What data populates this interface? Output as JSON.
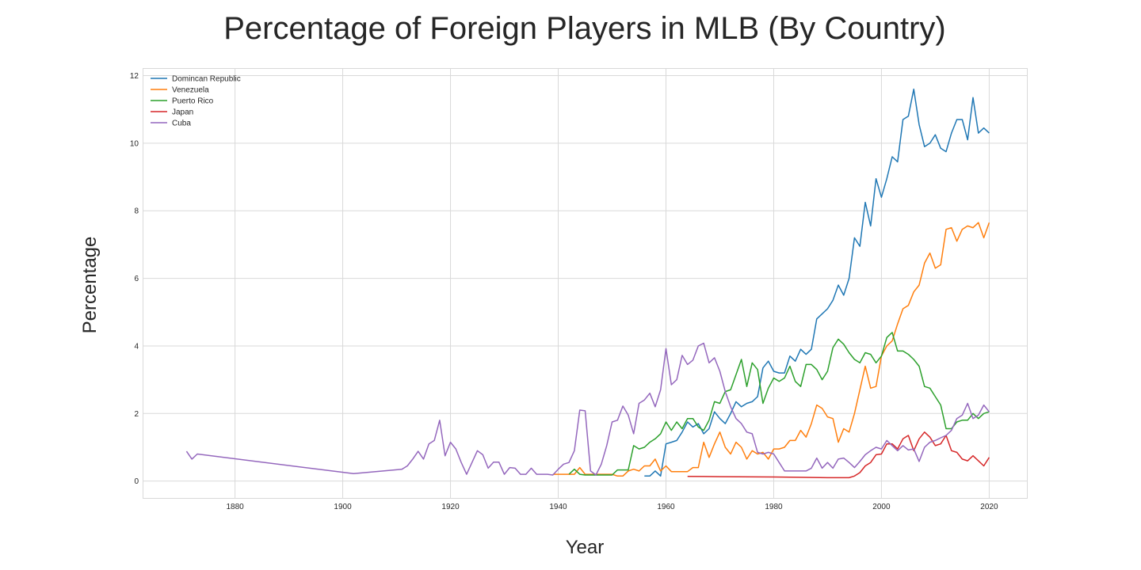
{
  "chart_data": {
    "type": "line",
    "title": "Percentage of Foreign Players in MLB (By Country)",
    "xlabel": "Year",
    "ylabel": "Percentage",
    "xlim": [
      1863,
      2027
    ],
    "ylim": [
      -0.5,
      12.2
    ],
    "x_ticks": [
      1880,
      1900,
      1920,
      1940,
      1960,
      1980,
      2000,
      2020
    ],
    "y_ticks": [
      0,
      2,
      4,
      6,
      8,
      10,
      12
    ],
    "grid": true,
    "legend_position": "top-left",
    "series": [
      {
        "name": "Domincan Republic",
        "color": "#1f77b4",
        "x": [
          1956,
          1957,
          1958,
          1959,
          1960,
          1961,
          1962,
          1963,
          1964,
          1965,
          1966,
          1967,
          1968,
          1969,
          1970,
          1971,
          1972,
          1973,
          1974,
          1975,
          1976,
          1977,
          1978,
          1979,
          1980,
          1981,
          1982,
          1983,
          1984,
          1985,
          1986,
          1987,
          1988,
          1989,
          1990,
          1991,
          1992,
          1993,
          1994,
          1995,
          1996,
          1997,
          1998,
          1999,
          2000,
          2001,
          2002,
          2003,
          2004,
          2005,
          2006,
          2007,
          2008,
          2009,
          2010,
          2011,
          2012,
          2013,
          2014,
          2015,
          2016,
          2017,
          2018,
          2019,
          2020
        ],
        "values": [
          0.15,
          0.15,
          0.3,
          0.15,
          1.1,
          1.15,
          1.2,
          1.45,
          1.75,
          1.6,
          1.7,
          1.4,
          1.55,
          2.05,
          1.85,
          1.7,
          2.0,
          2.35,
          2.2,
          2.3,
          2.35,
          2.5,
          3.35,
          3.55,
          3.25,
          3.2,
          3.2,
          3.7,
          3.55,
          3.9,
          3.75,
          3.9,
          4.8,
          4.95,
          5.1,
          5.35,
          5.8,
          5.5,
          6.0,
          7.2,
          6.95,
          8.25,
          7.55,
          8.95,
          8.4,
          8.95,
          9.6,
          9.45,
          10.7,
          10.8,
          11.6,
          10.55,
          9.9,
          10.0,
          10.25,
          9.85,
          9.75,
          10.3,
          10.7,
          10.7,
          10.1,
          11.35,
          10.3,
          10.45,
          10.3
        ]
      },
      {
        "name": "Venezuela",
        "color": "#ff7f0e",
        "x": [
          1939,
          1940,
          1941,
          1942,
          1943,
          1944,
          1945,
          1946,
          1947,
          1948,
          1949,
          1950,
          1951,
          1952,
          1953,
          1954,
          1955,
          1956,
          1957,
          1958,
          1959,
          1960,
          1961,
          1962,
          1963,
          1964,
          1965,
          1966,
          1967,
          1968,
          1969,
          1970,
          1971,
          1972,
          1973,
          1974,
          1975,
          1976,
          1977,
          1978,
          1979,
          1980,
          1981,
          1982,
          1983,
          1984,
          1985,
          1986,
          1987,
          1988,
          1989,
          1990,
          1991,
          1992,
          1993,
          1994,
          1995,
          1996,
          1997,
          1998,
          1999,
          2000,
          2001,
          2002,
          2003,
          2004,
          2005,
          2006,
          2007,
          2008,
          2009,
          2010,
          2011,
          2012,
          2013,
          2014,
          2015,
          2016,
          2017,
          2018,
          2019,
          2020
        ],
        "values": [
          0.2,
          0.2,
          0.2,
          0.2,
          0.2,
          0.4,
          0.2,
          0.2,
          0.2,
          0.2,
          0.2,
          0.2,
          0.15,
          0.15,
          0.3,
          0.35,
          0.3,
          0.45,
          0.45,
          0.65,
          0.3,
          0.45,
          0.28,
          0.28,
          0.28,
          0.28,
          0.4,
          0.4,
          1.15,
          0.7,
          1.1,
          1.45,
          1.0,
          0.8,
          1.15,
          1.0,
          0.65,
          0.9,
          0.8,
          0.85,
          0.65,
          0.95,
          0.95,
          1.0,
          1.2,
          1.2,
          1.5,
          1.3,
          1.7,
          2.25,
          2.15,
          1.9,
          1.85,
          1.15,
          1.55,
          1.45,
          2.0,
          2.7,
          3.4,
          2.75,
          2.8,
          3.7,
          4.0,
          4.15,
          4.65,
          5.1,
          5.2,
          5.6,
          5.8,
          6.45,
          6.75,
          6.3,
          6.4,
          7.45,
          7.5,
          7.1,
          7.45,
          7.55,
          7.5,
          7.65,
          7.2,
          7.65
        ]
      },
      {
        "name": "Puerto Rico",
        "color": "#2ca02c",
        "x": [
          1942,
          1943,
          1944,
          1945,
          1946,
          1947,
          1948,
          1949,
          1950,
          1951,
          1952,
          1953,
          1954,
          1955,
          1956,
          1957,
          1958,
          1959,
          1960,
          1961,
          1962,
          1963,
          1964,
          1965,
          1966,
          1967,
          1968,
          1969,
          1970,
          1971,
          1972,
          1973,
          1974,
          1975,
          1976,
          1977,
          1978,
          1979,
          1980,
          1981,
          1982,
          1983,
          1984,
          1985,
          1986,
          1987,
          1988,
          1989,
          1990,
          1991,
          1992,
          1993,
          1994,
          1995,
          1996,
          1997,
          1998,
          1999,
          2000,
          2001,
          2002,
          2003,
          2004,
          2005,
          2006,
          2007,
          2008,
          2009,
          2010,
          2011,
          2012,
          2013,
          2014,
          2015,
          2016,
          2017,
          2018,
          2019,
          2020
        ],
        "values": [
          0.2,
          0.35,
          0.2,
          0.18,
          0.18,
          0.18,
          0.18,
          0.18,
          0.18,
          0.33,
          0.33,
          0.33,
          1.05,
          0.95,
          1.0,
          1.15,
          1.25,
          1.4,
          1.75,
          1.5,
          1.75,
          1.55,
          1.85,
          1.85,
          1.6,
          1.5,
          1.8,
          2.35,
          2.3,
          2.65,
          2.7,
          3.15,
          3.6,
          2.8,
          3.5,
          3.3,
          2.3,
          2.75,
          3.05,
          2.95,
          3.05,
          3.4,
          2.95,
          2.8,
          3.45,
          3.45,
          3.3,
          3.0,
          3.25,
          3.95,
          4.2,
          4.05,
          3.8,
          3.6,
          3.5,
          3.8,
          3.75,
          3.5,
          3.7,
          4.25,
          4.4,
          3.85,
          3.85,
          3.75,
          3.6,
          3.4,
          2.8,
          2.75,
          2.5,
          2.25,
          1.55,
          1.55,
          1.75,
          1.8,
          1.8,
          2.0,
          1.85,
          2.0,
          2.05
        ]
      },
      {
        "name": "Japan",
        "color": "#d62728",
        "x": [
          1964,
          1970,
          1980,
          1990,
          1994,
          1995,
          1996,
          1997,
          1998,
          1999,
          2000,
          2001,
          2002,
          2003,
          2004,
          2005,
          2006,
          2007,
          2008,
          2009,
          2010,
          2011,
          2012,
          2013,
          2014,
          2015,
          2016,
          2017,
          2018,
          2019,
          2020
        ],
        "values": [
          0.14,
          0.13,
          0.12,
          0.1,
          0.1,
          0.15,
          0.25,
          0.45,
          0.55,
          0.78,
          0.8,
          1.1,
          1.1,
          0.95,
          1.25,
          1.35,
          0.9,
          1.25,
          1.45,
          1.3,
          1.05,
          1.1,
          1.35,
          0.9,
          0.85,
          0.65,
          0.6,
          0.75,
          0.6,
          0.45,
          0.7
        ]
      },
      {
        "name": "Cuba",
        "color": "#9467bd",
        "x": [
          1871,
          1872,
          1873,
          1902,
          1911,
          1912,
          1913,
          1914,
          1915,
          1916,
          1917,
          1918,
          1919,
          1920,
          1921,
          1922,
          1923,
          1924,
          1925,
          1926,
          1927,
          1928,
          1929,
          1930,
          1931,
          1932,
          1933,
          1934,
          1935,
          1936,
          1937,
          1938,
          1939,
          1940,
          1941,
          1942,
          1943,
          1944,
          1945,
          1946,
          1947,
          1948,
          1949,
          1950,
          1951,
          1952,
          1953,
          1954,
          1955,
          1956,
          1957,
          1958,
          1959,
          1960,
          1961,
          1962,
          1963,
          1964,
          1965,
          1966,
          1967,
          1968,
          1969,
          1970,
          1971,
          1972,
          1973,
          1974,
          1975,
          1976,
          1977,
          1978,
          1979,
          1980,
          1981,
          1982,
          1983,
          1984,
          1985,
          1986,
          1987,
          1988,
          1989,
          1990,
          1991,
          1992,
          1993,
          1994,
          1995,
          1996,
          1997,
          1998,
          1999,
          2000,
          2001,
          2002,
          2003,
          2004,
          2005,
          2006,
          2007,
          2008,
          2009,
          2010,
          2011,
          2012,
          2013,
          2014,
          2015,
          2016,
          2017,
          2018,
          2019,
          2020
        ],
        "values": [
          0.88,
          0.65,
          0.8,
          0.22,
          0.35,
          0.45,
          0.65,
          0.88,
          0.65,
          1.1,
          1.2,
          1.8,
          0.75,
          1.15,
          0.95,
          0.55,
          0.2,
          0.55,
          0.9,
          0.78,
          0.38,
          0.56,
          0.56,
          0.2,
          0.4,
          0.38,
          0.2,
          0.2,
          0.38,
          0.2,
          0.2,
          0.2,
          0.18,
          0.35,
          0.5,
          0.55,
          0.9,
          2.1,
          2.08,
          0.3,
          0.18,
          0.5,
          1.05,
          1.75,
          1.8,
          2.22,
          1.95,
          1.4,
          2.3,
          2.4,
          2.6,
          2.2,
          2.7,
          3.92,
          2.85,
          3.0,
          3.72,
          3.45,
          3.58,
          4.0,
          4.08,
          3.5,
          3.65,
          3.25,
          2.65,
          2.2,
          1.85,
          1.7,
          1.45,
          1.4,
          0.85,
          0.8,
          0.85,
          0.8,
          0.55,
          0.3,
          0.3,
          0.3,
          0.3,
          0.3,
          0.38,
          0.68,
          0.38,
          0.55,
          0.38,
          0.65,
          0.68,
          0.55,
          0.4,
          0.58,
          0.78,
          0.9,
          1.0,
          0.95,
          1.2,
          1.05,
          0.9,
          1.05,
          0.92,
          0.95,
          0.58,
          1.0,
          1.15,
          1.2,
          1.28,
          1.35,
          1.5,
          1.85,
          1.95,
          2.3,
          1.85,
          1.95,
          2.25,
          2.05
        ]
      }
    ]
  }
}
